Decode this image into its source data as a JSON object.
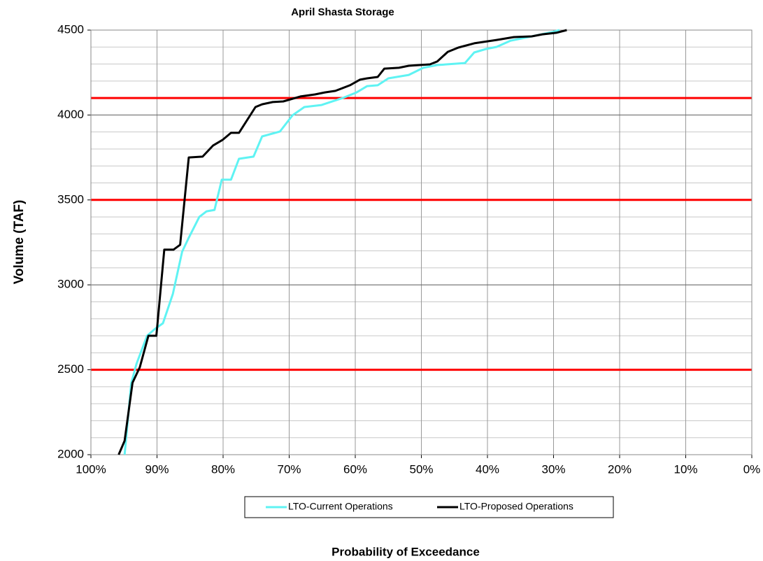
{
  "chart_data": {
    "type": "line",
    "title": "April Shasta Storage",
    "xlabel": "Probability of Exceedance",
    "ylabel": "Volume (TAF)",
    "xlim": [
      100,
      0
    ],
    "ylim": [
      2000,
      4500
    ],
    "xticks": [
      {
        "value": 100,
        "label": "100%"
      },
      {
        "value": 90,
        "label": "90%"
      },
      {
        "value": 80,
        "label": "80%"
      },
      {
        "value": 70,
        "label": "70%"
      },
      {
        "value": 60,
        "label": "60%"
      },
      {
        "value": 50,
        "label": "50%"
      },
      {
        "value": 40,
        "label": "40%"
      },
      {
        "value": 30,
        "label": "30%"
      },
      {
        "value": 20,
        "label": "20%"
      },
      {
        "value": 10,
        "label": "10%"
      },
      {
        "value": 0,
        "label": "0%"
      }
    ],
    "yticks": [
      2000,
      2500,
      3000,
      3500,
      4000,
      4500
    ],
    "y_minor_step": 100,
    "grid": true,
    "legend": "bottom",
    "reference_lines": [
      {
        "value": 2500,
        "color": "#ff0000"
      },
      {
        "value": 3500,
        "color": "#ff0000"
      },
      {
        "value": 4100,
        "color": "#ff0000"
      }
    ],
    "series": [
      {
        "name": "LTO-Current Operations",
        "color": "#5ff3f3",
        "x": [
          94.9,
          93.9,
          93.1,
          91.5,
          90.3,
          89.1,
          87.6,
          86.2,
          85.2,
          83.6,
          82.5,
          81.3,
          80.2,
          78.8,
          77.6,
          75.4,
          74.1,
          71.4,
          69.5,
          67.7,
          65.1,
          61.9,
          59.8,
          58.2,
          56.6,
          55.0,
          51.9,
          49.7,
          47.6,
          43.4,
          42.0,
          40.2,
          38.6,
          36.5,
          33.3,
          30.2,
          29.1
        ],
        "values": [
          2000,
          2420,
          2535,
          2700,
          2741,
          2774,
          2947,
          3195,
          3277,
          3400,
          3433,
          3441,
          3619,
          3619,
          3742,
          3755,
          3874,
          3903,
          3998,
          4047,
          4059,
          4100,
          4133,
          4170,
          4175,
          4216,
          4236,
          4278,
          4294,
          4306,
          4368,
          4389,
          4401,
          4438,
          4463,
          4488,
          4500
        ]
      },
      {
        "name": "LTO-Proposed Operations",
        "color": "#000000",
        "x": [
          95.8,
          94.9,
          93.7,
          92.6,
          91.3,
          90.1,
          88.9,
          87.5,
          86.5,
          85.2,
          83.1,
          81.5,
          80.1,
          78.8,
          77.6,
          75.1,
          74.1,
          72.5,
          70.9,
          68.3,
          66.1,
          64.6,
          63.0,
          60.8,
          59.3,
          58.2,
          56.6,
          55.6,
          53.4,
          51.9,
          48.7,
          47.6,
          46.0,
          44.4,
          42.0,
          38.6,
          36.0,
          33.3,
          31.7,
          29.6,
          28.0
        ],
        "values": [
          2000,
          2082,
          2424,
          2515,
          2700,
          2700,
          3207,
          3207,
          3236,
          3750,
          3755,
          3821,
          3853,
          3895,
          3895,
          4047,
          4063,
          4076,
          4080,
          4109,
          4121,
          4133,
          4142,
          4175,
          4208,
          4216,
          4224,
          4273,
          4278,
          4290,
          4298,
          4315,
          4372,
          4397,
          4422,
          4442,
          4459,
          4463,
          4475,
          4484,
          4500
        ]
      }
    ]
  }
}
